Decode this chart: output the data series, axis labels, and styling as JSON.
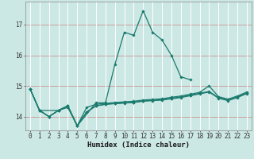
{
  "background_color": "#cce8e4",
  "grid_color_h": "#c8a0a0",
  "grid_color_v": "#ffffff",
  "line_color": "#1a7a6e",
  "x_values": [
    0,
    1,
    2,
    3,
    4,
    5,
    6,
    7,
    8,
    9,
    10,
    11,
    12,
    13,
    14,
    15,
    16,
    17,
    18,
    19,
    20,
    21,
    22,
    23
  ],
  "series": [
    [
      14.9,
      14.2,
      null,
      14.2,
      14.3,
      13.7,
      null,
      14.45,
      14.45,
      15.7,
      16.75,
      16.65,
      17.45,
      16.75,
      16.5,
      16.0,
      15.3,
      15.2,
      null,
      null,
      null,
      null,
      null,
      null
    ],
    [
      14.9,
      14.2,
      14.0,
      14.2,
      14.35,
      13.7,
      14.15,
      14.35,
      14.4,
      14.42,
      14.44,
      14.46,
      14.5,
      14.52,
      14.54,
      14.58,
      14.62,
      14.68,
      14.74,
      14.8,
      14.6,
      14.52,
      14.62,
      14.75
    ],
    [
      14.9,
      14.2,
      14.0,
      14.2,
      14.35,
      13.7,
      14.15,
      14.35,
      14.4,
      14.43,
      14.45,
      14.47,
      14.51,
      14.53,
      14.55,
      14.6,
      14.64,
      14.7,
      14.76,
      14.82,
      14.62,
      14.54,
      14.64,
      14.77
    ],
    [
      14.9,
      14.2,
      14.0,
      14.2,
      14.35,
      13.7,
      14.3,
      14.4,
      14.43,
      14.46,
      14.48,
      14.5,
      14.54,
      14.56,
      14.58,
      14.63,
      14.67,
      14.73,
      14.79,
      15.0,
      14.65,
      14.57,
      14.67,
      14.8
    ]
  ],
  "ylim": [
    13.55,
    17.75
  ],
  "yticks": [
    14,
    15,
    16,
    17
  ],
  "xlabel": "Humidex (Indice chaleur)",
  "xlabel_fontsize": 6.5,
  "tick_fontsize": 5.5,
  "marker": "D",
  "marker_size": 1.8,
  "linewidth": 0.9
}
